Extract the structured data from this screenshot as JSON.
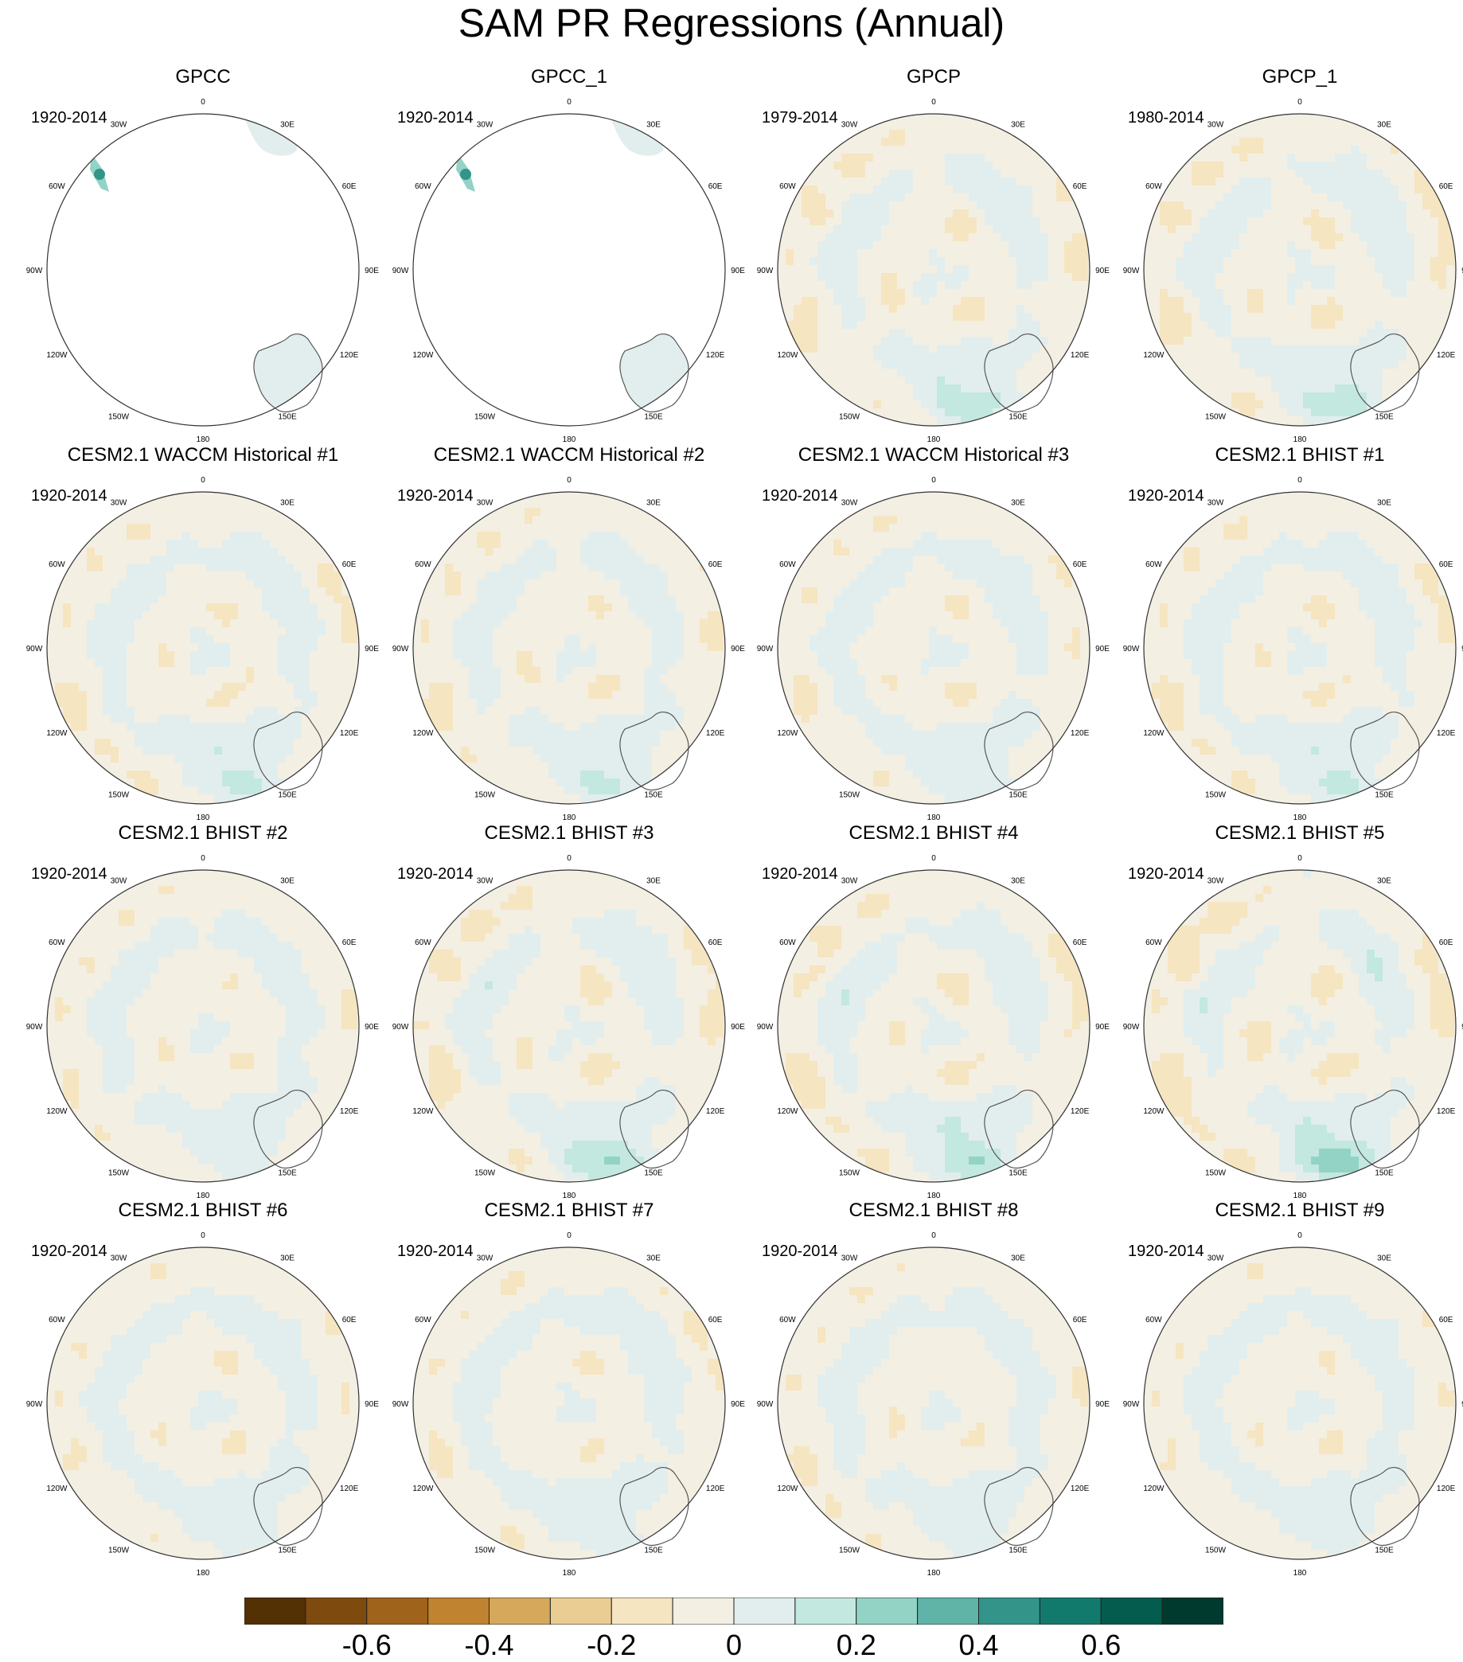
{
  "title": "SAM PR Regressions (Annual)",
  "panels": [
    {
      "title": "GPCC",
      "period": "1920-2014",
      "coverage": "land-only",
      "pattern": {
        "amp": 0.0
      }
    },
    {
      "title": "GPCC_1",
      "period": "1920-2014",
      "coverage": "land-only",
      "pattern": {
        "amp": 0.0
      }
    },
    {
      "title": "GPCP",
      "period": "1979-2014",
      "coverage": "full",
      "pattern": {
        "amp": 0.9
      }
    },
    {
      "title": "GPCP_1",
      "period": "1980-2014",
      "coverage": "full",
      "pattern": {
        "amp": 0.9
      }
    },
    {
      "title": "CESM2.1 WACCM Historical #1",
      "period": "1920-2014",
      "coverage": "full",
      "pattern": {
        "amp": 0.7
      }
    },
    {
      "title": "CESM2.1 WACCM Historical #2",
      "period": "1920-2014",
      "coverage": "full",
      "pattern": {
        "amp": 0.7
      }
    },
    {
      "title": "CESM2.1 WACCM Historical #3",
      "period": "1920-2014",
      "coverage": "full",
      "pattern": {
        "amp": 0.55
      }
    },
    {
      "title": "CESM2.1 BHIST #1",
      "period": "1920-2014",
      "coverage": "full",
      "pattern": {
        "amp": 0.7
      }
    },
    {
      "title": "CESM2.1 BHIST #2",
      "period": "1920-2014",
      "coverage": "full",
      "pattern": {
        "amp": 0.45
      }
    },
    {
      "title": "CESM2.1 BHIST #3",
      "period": "1920-2014",
      "coverage": "full",
      "pattern": {
        "amp": 1.0
      }
    },
    {
      "title": "CESM2.1 BHIST #4",
      "period": "1920-2014",
      "coverage": "full",
      "pattern": {
        "amp": 0.95
      }
    },
    {
      "title": "CESM2.1 BHIST #5",
      "period": "1920-2014",
      "coverage": "full",
      "pattern": {
        "amp": 1.25
      }
    },
    {
      "title": "CESM2.1 BHIST #6",
      "period": "1920-2014",
      "coverage": "full",
      "pattern": {
        "amp": 0.4
      }
    },
    {
      "title": "CESM2.1 BHIST #7",
      "period": "1920-2014",
      "coverage": "full",
      "pattern": {
        "amp": 0.5
      }
    },
    {
      "title": "CESM2.1 BHIST #8",
      "period": "1920-2014",
      "coverage": "full",
      "pattern": {
        "amp": 0.5
      }
    },
    {
      "title": "CESM2.1 BHIST #9",
      "period": "1920-2014",
      "coverage": "full",
      "pattern": {
        "amp": 0.35
      }
    }
  ],
  "longitude_labels": [
    "0",
    "30E",
    "60E",
    "90E",
    "120E",
    "150E",
    "180",
    "150W",
    "120W",
    "90W",
    "60W",
    "30W"
  ],
  "colorbar": {
    "colors": [
      "#543005",
      "#7f4a0e",
      "#a0631b",
      "#c0832f",
      "#d6a85c",
      "#e9cd92",
      "#f5e5c1",
      "#f4efe3",
      "#e2eeee",
      "#c3e8df",
      "#93d3c6",
      "#5fb4a7",
      "#33948a",
      "#127a6d",
      "#035c4d",
      "#00392d"
    ],
    "tick_labels": [
      "-0.6",
      "-0.4",
      "-0.2",
      "0",
      "0.2",
      "0.4",
      "0.6"
    ]
  }
}
